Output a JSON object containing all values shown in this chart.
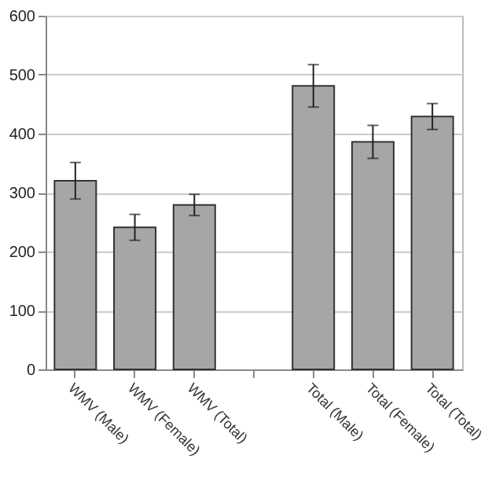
{
  "chart_data": {
    "type": "bar",
    "categories": [
      "WMV (Male)",
      "WMV (Female)",
      "WMV (Total)",
      null,
      "Total (Male)",
      "Total (Female)",
      "Total (Total)"
    ],
    "values": [
      320,
      241,
      279,
      null,
      481,
      386,
      429
    ],
    "errors": [
      31,
      22,
      18,
      null,
      36,
      28,
      22
    ],
    "color": "#a6a6a6",
    "ylim": [
      0,
      600
    ],
    "yticks": [
      0,
      100,
      200,
      300,
      400,
      500,
      600
    ],
    "grid": "y"
  }
}
